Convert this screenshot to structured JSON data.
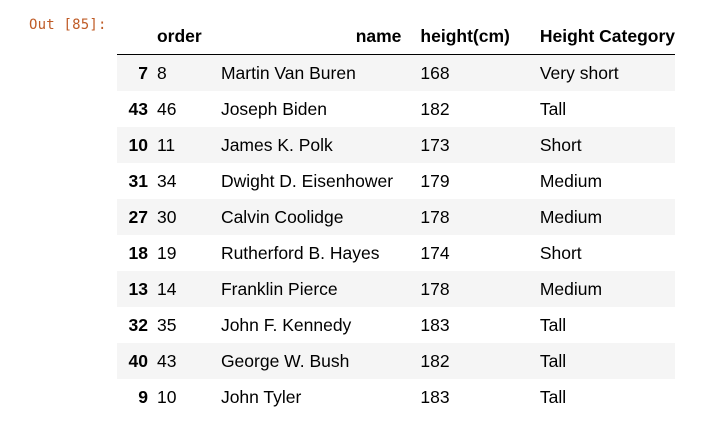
{
  "cell": {
    "prompt": "Out [85]:"
  },
  "table": {
    "columns": [
      "",
      "order",
      "name",
      "height(cm)",
      "Height Category"
    ],
    "rows": [
      {
        "index": "7",
        "order": "8",
        "name": "Martin Van Buren",
        "height": "168",
        "category": "Very short"
      },
      {
        "index": "43",
        "order": "46",
        "name": "Joseph Biden",
        "height": "182",
        "category": "Tall"
      },
      {
        "index": "10",
        "order": "11",
        "name": "James K. Polk",
        "height": "173",
        "category": "Short"
      },
      {
        "index": "31",
        "order": "34",
        "name": "Dwight D. Eisenhower",
        "height": "179",
        "category": "Medium"
      },
      {
        "index": "27",
        "order": "30",
        "name": "Calvin Coolidge",
        "height": "178",
        "category": "Medium"
      },
      {
        "index": "18",
        "order": "19",
        "name": "Rutherford B. Hayes",
        "height": "174",
        "category": "Short"
      },
      {
        "index": "13",
        "order": "14",
        "name": "Franklin Pierce",
        "height": "178",
        "category": "Medium"
      },
      {
        "index": "32",
        "order": "35",
        "name": "John F. Kennedy",
        "height": "183",
        "category": "Tall"
      },
      {
        "index": "40",
        "order": "43",
        "name": "George W. Bush",
        "height": "182",
        "category": "Tall"
      },
      {
        "index": "9",
        "order": "10",
        "name": "John Tyler",
        "height": "183",
        "category": "Tall"
      }
    ]
  },
  "colors": {
    "prompt": "#bf5b26",
    "stripe": "#f5f5f5"
  }
}
